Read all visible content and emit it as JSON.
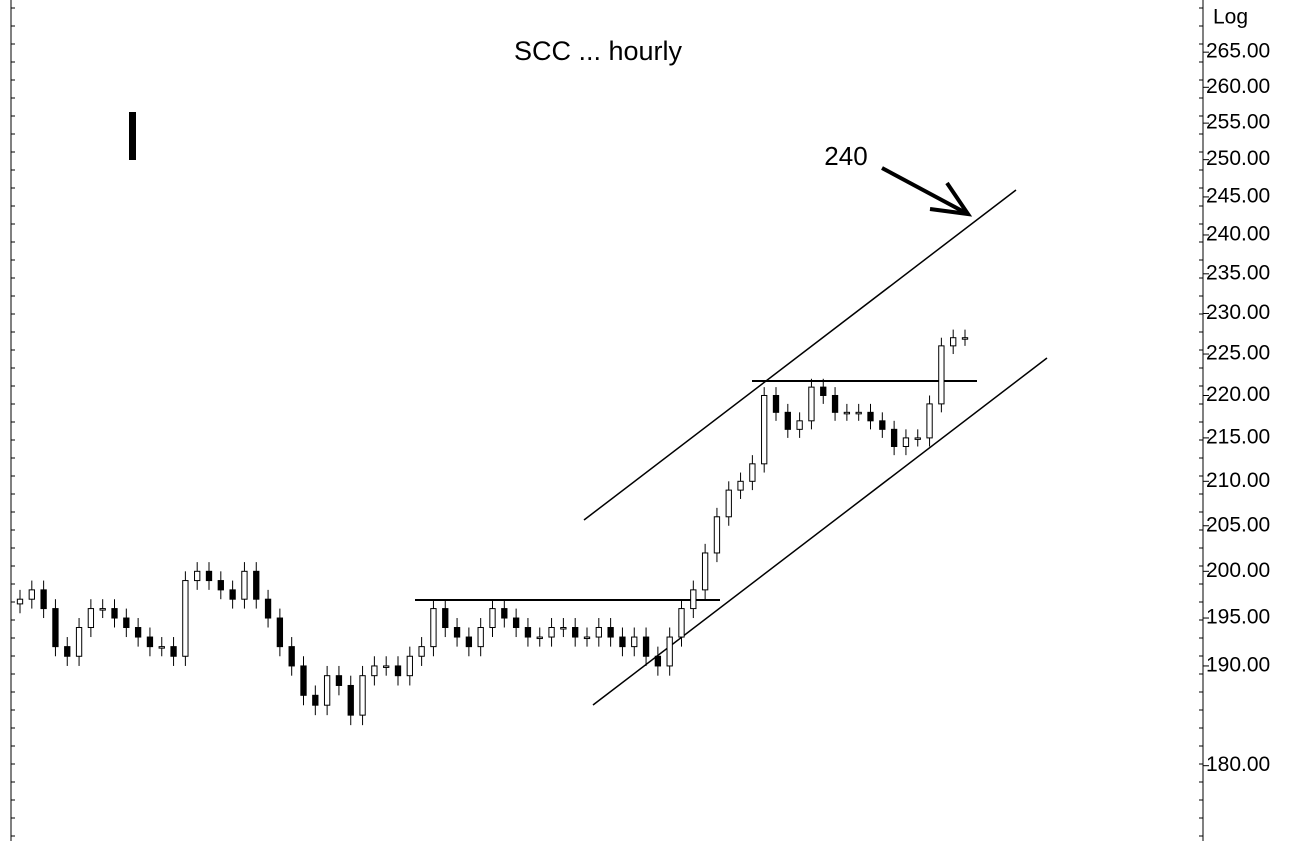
{
  "chart_data": {
    "type": "candlestick",
    "title": "SCC ... hourly",
    "scale_label": "Log",
    "annotation": "240",
    "log_scale": true,
    "ylim": [
      172.8,
      272.6
    ],
    "yticks": [
      {
        "value": 180,
        "label": "180.00"
      },
      {
        "value": 190,
        "label": "190.00"
      },
      {
        "value": 195,
        "label": "195.00"
      },
      {
        "value": 200,
        "label": "200.00"
      },
      {
        "value": 205,
        "label": "205.00"
      },
      {
        "value": 210,
        "label": "210.00"
      },
      {
        "value": 215,
        "label": "215.00"
      },
      {
        "value": 220,
        "label": "220.00"
      },
      {
        "value": 225,
        "label": "225.00"
      },
      {
        "value": 230,
        "label": "230.00"
      },
      {
        "value": 235,
        "label": "235.00"
      },
      {
        "value": 240,
        "label": "240.00"
      },
      {
        "value": 245,
        "label": "245.00"
      },
      {
        "value": 250,
        "label": "250.00"
      },
      {
        "value": 255,
        "label": "255.00"
      },
      {
        "value": 260,
        "label": "260.00"
      },
      {
        "value": 265,
        "label": "265.00"
      }
    ],
    "open": [
      196.5,
      197,
      198,
      196,
      192,
      191,
      194,
      196,
      196,
      195,
      194,
      193,
      192,
      192,
      191,
      199,
      200,
      199,
      198,
      197,
      200,
      197,
      195,
      192,
      190,
      187,
      186,
      189,
      188,
      185,
      189,
      190,
      190,
      189,
      191,
      192,
      196,
      194,
      193,
      192,
      194,
      196,
      195,
      194,
      193,
      193,
      194,
      194,
      193,
      193,
      194,
      193,
      192,
      193,
      191,
      190,
      193,
      196,
      198,
      202,
      206,
      209,
      210,
      212,
      220,
      218,
      216,
      217,
      221,
      220,
      218,
      218,
      218,
      217,
      216,
      214,
      215,
      215,
      219,
      226,
      227
    ],
    "high": [
      198,
      199,
      199,
      197,
      193,
      195,
      197,
      197,
      197,
      196,
      195,
      194,
      193,
      193,
      200,
      201,
      201,
      200,
      199,
      201,
      201,
      198,
      196,
      193,
      191,
      188,
      190,
      190,
      189,
      190,
      191,
      191,
      191,
      192,
      193,
      197,
      197,
      195,
      194,
      195,
      197,
      197,
      196,
      195,
      194,
      195,
      195,
      195,
      194,
      195,
      195,
      194,
      194,
      194,
      192,
      194,
      197,
      199,
      203,
      207,
      210,
      211,
      213,
      221,
      221,
      219,
      218,
      222,
      222,
      221,
      219,
      219,
      219,
      218,
      217,
      216,
      216,
      220,
      227,
      228,
      228
    ],
    "low": [
      195.5,
      196,
      195,
      191,
      190,
      190,
      193,
      195,
      194,
      193,
      192,
      191,
      191,
      190,
      190,
      198,
      198,
      197,
      196,
      196,
      196,
      194,
      191,
      189,
      186,
      185,
      185,
      187,
      184,
      184,
      188,
      189,
      188,
      188,
      190,
      191,
      193,
      192,
      191,
      191,
      193,
      194,
      193,
      192,
      192,
      192,
      193,
      192,
      192,
      192,
      192,
      191,
      191,
      190,
      189,
      189,
      192,
      195,
      197,
      201,
      205,
      208,
      209,
      211,
      217,
      215,
      215,
      216,
      219,
      217,
      217,
      217,
      216,
      215,
      213,
      213,
      214,
      214,
      218,
      225,
      226
    ],
    "close": [
      197,
      198,
      196,
      192,
      191,
      194,
      196,
      196,
      195,
      194,
      193,
      192,
      192,
      191,
      199,
      200,
      199,
      198,
      197,
      200,
      197,
      195,
      192,
      190,
      187,
      186,
      189,
      188,
      185,
      189,
      190,
      190,
      189,
      191,
      192,
      196,
      194,
      193,
      192,
      194,
      196,
      195,
      194,
      193,
      193,
      194,
      194,
      193,
      193,
      194,
      193,
      192,
      193,
      191,
      190,
      193,
      196,
      198,
      202,
      206,
      209,
      210,
      212,
      220,
      218,
      216,
      217,
      221,
      220,
      218,
      218,
      218,
      217,
      216,
      214,
      215,
      215,
      219,
      226,
      227,
      227
    ]
  }
}
